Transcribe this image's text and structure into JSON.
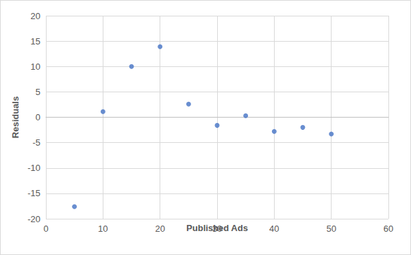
{
  "chart_data": {
    "type": "scatter",
    "x_label": "Published Ads",
    "y_label": "Residuals",
    "x": [
      5,
      10,
      15,
      20,
      25,
      30,
      35,
      40,
      45,
      50
    ],
    "values": [
      -17.6,
      1.1,
      10.0,
      13.9,
      2.6,
      -1.6,
      0.3,
      -2.8,
      -2.0,
      -3.3
    ],
    "color": "#4472c4",
    "marker": "circle",
    "xlim": [
      0,
      60
    ],
    "xticks": [
      0,
      10,
      20,
      30,
      40,
      50,
      60
    ],
    "ylim": [
      -20,
      20
    ],
    "yticks": [
      -20,
      -15,
      -10,
      -5,
      0,
      5,
      10,
      15,
      20
    ],
    "grid": true
  }
}
